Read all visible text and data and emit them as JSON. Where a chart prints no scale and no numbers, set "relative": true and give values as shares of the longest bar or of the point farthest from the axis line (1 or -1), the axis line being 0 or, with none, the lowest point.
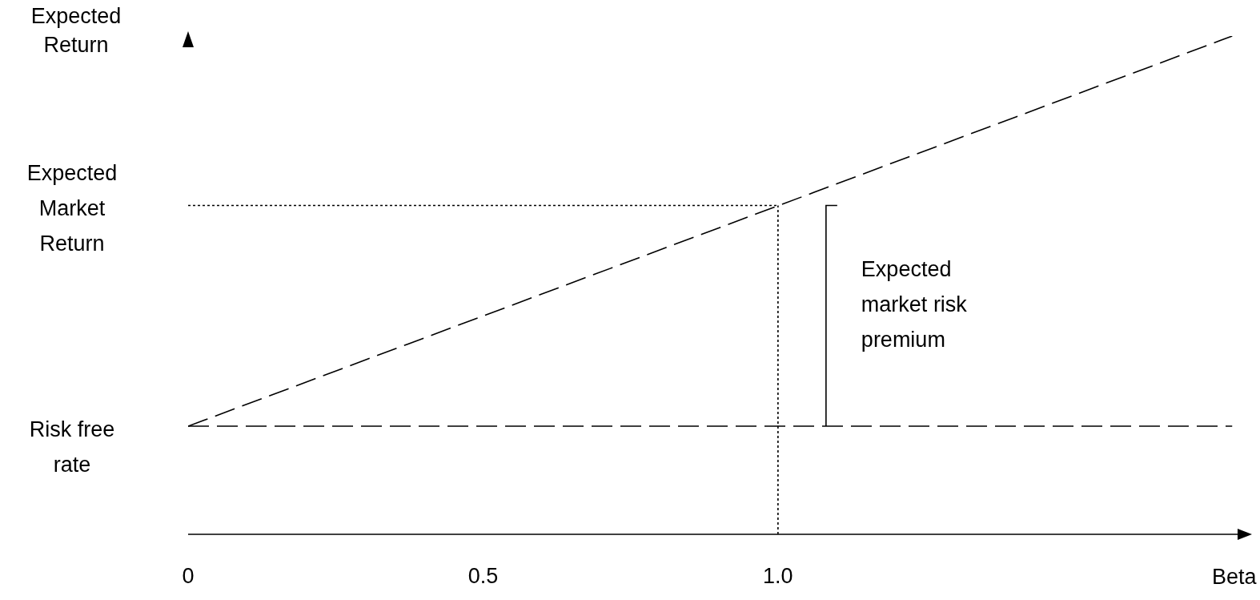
{
  "chart_data": {
    "type": "line",
    "relative": true,
    "ylabel": "Expected Return",
    "xlabel": "Beta",
    "xlim": [
      0,
      1.79
    ],
    "xticks": [
      0,
      0.5,
      {
        "value": 1,
        "label": "1.0"
      }
    ],
    "grid": false,
    "series": [
      {
        "color": "#000000",
        "x": [
          0,
          1.77
        ],
        "values": [
          0.217,
          1
        ],
        "line_style": "dashed"
      },
      {
        "color": "#000000",
        "x": [
          0,
          1.77
        ],
        "values": [
          0.217,
          0.217
        ],
        "line_style": "dashed"
      },
      {
        "color": "#000000",
        "x": [
          0,
          1
        ],
        "values": [
          0.66,
          0.66
        ],
        "line_style": "dotted"
      },
      {
        "color": "#000000",
        "x": [
          1,
          1
        ],
        "values": [
          0,
          0.66
        ],
        "line_style": "dotted"
      }
    ],
    "annotations": [
      "Risk free rate",
      "Expected Market Return",
      "Expected market risk premium"
    ]
  }
}
